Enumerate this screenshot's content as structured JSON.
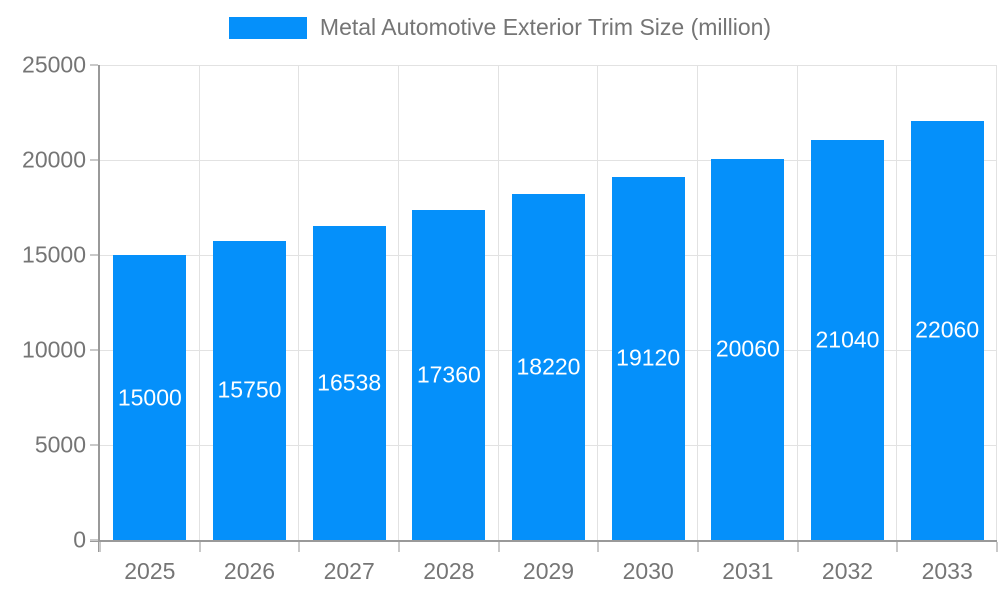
{
  "chart_data": {
    "type": "bar",
    "title": "Metal Automotive Exterior Trim Size (million)",
    "categories": [
      "2025",
      "2026",
      "2027",
      "2028",
      "2029",
      "2030",
      "2031",
      "2032",
      "2033"
    ],
    "values": [
      15000,
      15750,
      16538,
      17360,
      18220,
      19120,
      20060,
      21040,
      22060
    ],
    "value_labels": [
      "15000",
      "15750",
      "16538",
      "17360",
      "18220",
      "19120",
      "20060",
      "21040",
      "22060"
    ],
    "xlabel": "",
    "ylabel": "",
    "ylim": [
      0,
      25000
    ],
    "ytick_interval": 5000,
    "yticks": [
      "0",
      "5000",
      "10000",
      "15000",
      "20000",
      "25000"
    ],
    "grid": true,
    "legend_position": "top",
    "colors": {
      "bar": "#0590fa",
      "bar_label_text": "#ffffff",
      "axis_line": "#999999",
      "gridline": "#e2e2e2",
      "tick": "#c9c9c9",
      "axis_text": "#757575",
      "background": "#ffffff"
    }
  }
}
